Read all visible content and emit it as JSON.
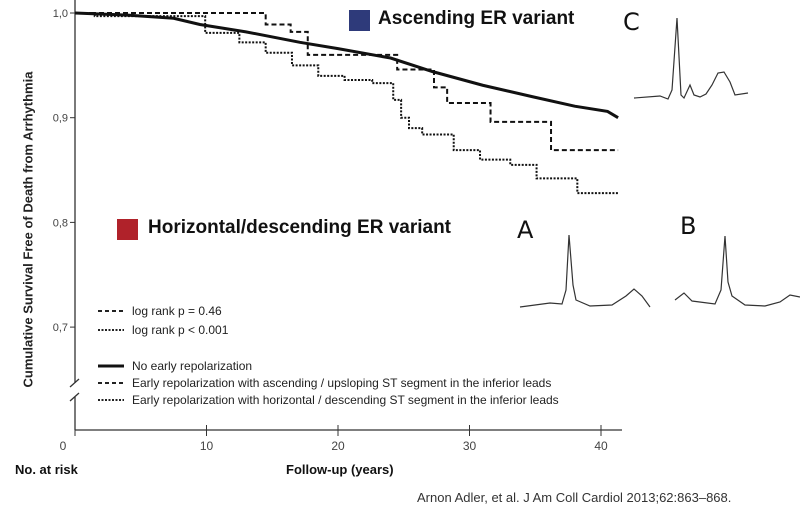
{
  "chart_data": {
    "type": "line",
    "subtype": "kaplan-meier",
    "xlabel": "Follow-up (years)",
    "ylabel": "Cumulative Survival Free of Death from Arrhythmia",
    "xlim": [
      0,
      42
    ],
    "ylim": [
      0.68,
      1.0
    ],
    "x_ticks": [
      0,
      10,
      20,
      30,
      40
    ],
    "y_ticks": [
      {
        "v": 1.0,
        "label": "1,0"
      },
      {
        "v": 0.9,
        "label": "0,9"
      },
      {
        "v": 0.8,
        "label": "0,8"
      },
      {
        "v": 0.7,
        "label": "0,7"
      }
    ],
    "axis_break": true,
    "no_at_risk_label": "No. at risk",
    "series": [
      {
        "name": "No early repolarization",
        "style": "solid",
        "step": false,
        "x": [
          0,
          4,
          7.5,
          9.5,
          13,
          17.1,
          20,
          24,
          27.2,
          31,
          34.8,
          38,
          40.5,
          41.3
        ],
        "y": [
          1.0,
          0.998,
          0.995,
          0.989,
          0.982,
          0.972,
          0.966,
          0.957,
          0.944,
          0.931,
          0.92,
          0.911,
          0.906,
          0.9
        ]
      },
      {
        "name": "Early repolarization with ascending / upsloping ST segment in the inferior leads",
        "style": "dashed",
        "step": true,
        "x": [
          0,
          14.5,
          16.4,
          17.7,
          24.5,
          27.3,
          28.3,
          31.6,
          36.2,
          41.3
        ],
        "y": [
          1.0,
          0.989,
          0.982,
          0.96,
          0.946,
          0.929,
          0.914,
          0.896,
          0.869,
          0.869
        ]
      },
      {
        "name": "Early repolarization with horizontal / descending ST segment in the inferior leads",
        "style": "dotted",
        "step": true,
        "x": [
          0,
          1.5,
          9.9,
          12.5,
          14.5,
          16.5,
          18.5,
          20.5,
          22.6,
          24.2,
          24.8,
          25.4,
          26.4,
          28.8,
          30.8,
          33.1,
          35.1,
          38.2,
          41.3
        ],
        "y": [
          1.0,
          0.997,
          0.981,
          0.972,
          0.962,
          0.95,
          0.94,
          0.936,
          0.933,
          0.917,
          0.9,
          0.89,
          0.884,
          0.869,
          0.86,
          0.855,
          0.842,
          0.828,
          0.828
        ]
      }
    ],
    "stat_legend": [
      {
        "style": "dashed",
        "label": "log rank  p = 0.46"
      },
      {
        "style": "dotted",
        "label": "log rank  p < 0.001"
      }
    ]
  },
  "annotations": {
    "ascending": {
      "label": "Ascending ER variant",
      "color": "#2e3a7a"
    },
    "horizontal": {
      "label": "Horizontal/descending ER variant",
      "color": "#b0222a"
    },
    "panel_c": "C",
    "panel_a": "A",
    "panel_b": "B"
  },
  "citation": "Arnon Adler, et al. J Am Coll Cardiol 2013;62:863–868."
}
